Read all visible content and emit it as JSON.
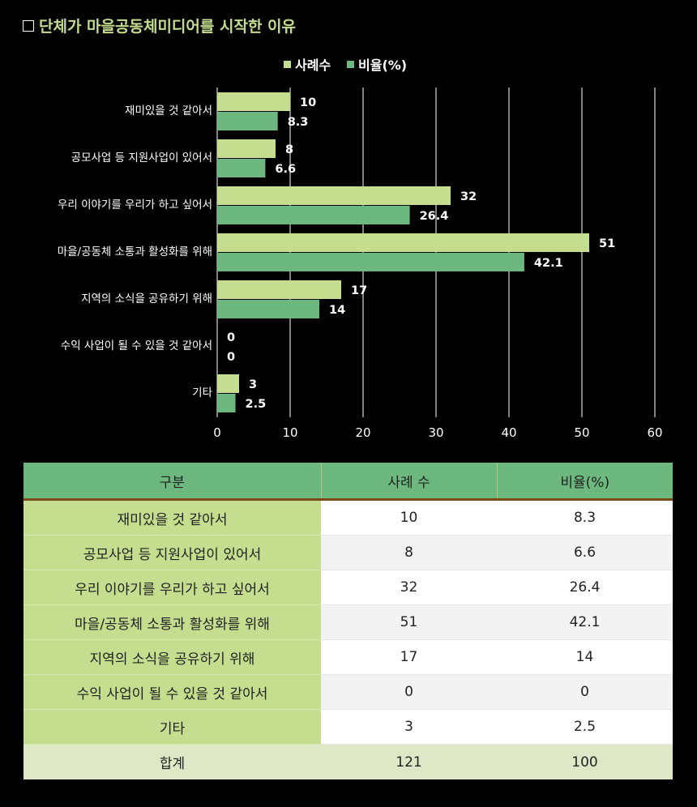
{
  "title": "단체가 마을공동체미디어를 시작한 이유",
  "colors": {
    "series1": "#c5dd8e",
    "series2": "#6cb87e"
  },
  "chart_data": {
    "type": "bar",
    "orientation": "horizontal",
    "categories": [
      "재미있을 것 같아서",
      "공모사업 등 지원사업이 있어서",
      "우리 이야기를 우리가 하고 싶어서",
      "마을/공동체 소통과 활성화를 위해",
      "지역의 소식을 공유하기 위해",
      "수익 사업이 될 수 있을 것 같아서",
      "기타"
    ],
    "series": [
      {
        "name": "사례수",
        "values": [
          10,
          8,
          32,
          51,
          17,
          0,
          3
        ]
      },
      {
        "name": "비율(%)",
        "values": [
          8.3,
          6.6,
          26.4,
          42.1,
          14,
          0,
          2.5
        ]
      }
    ],
    "xlim": [
      0,
      60
    ],
    "xticks": [
      0,
      10,
      20,
      30,
      40,
      50,
      60
    ],
    "grid": true,
    "legend": "top"
  },
  "table": {
    "headers": [
      "구분",
      "사례 수",
      "비율(%)"
    ],
    "rows": [
      [
        "재미있을 것 같아서",
        "10",
        "8.3"
      ],
      [
        "공모사업 등 지원사업이 있어서",
        "8",
        "6.6"
      ],
      [
        "우리 이야기를 우리가 하고 싶어서",
        "32",
        "26.4"
      ],
      [
        "마을/공동체 소통과 활성화를 위해",
        "51",
        "42.1"
      ],
      [
        "지역의 소식을 공유하기 위해",
        "17",
        "14"
      ],
      [
        "수익 사업이 될 수 있을 것 같아서",
        "0",
        "0"
      ],
      [
        "기타",
        "3",
        "2.5"
      ]
    ],
    "total": [
      "합계",
      "121",
      "100"
    ]
  }
}
